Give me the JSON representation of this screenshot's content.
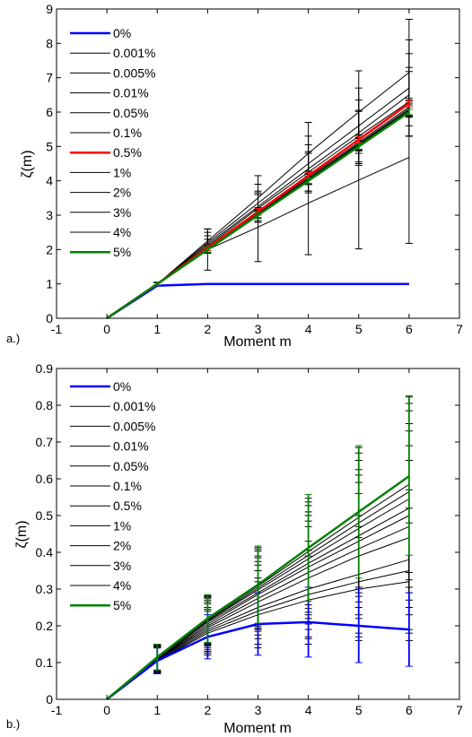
{
  "chart_data": [
    {
      "panel_label": "a.)",
      "type": "line",
      "xlabel": "Moment m",
      "ylabel": "ζ(m)",
      "xlim": [
        -1,
        7
      ],
      "ylim": [
        0,
        9
      ],
      "xticks": [
        -1,
        0,
        1,
        2,
        3,
        4,
        5,
        6,
        7
      ],
      "yticks": [
        0,
        1,
        2,
        3,
        4,
        5,
        6,
        7,
        8,
        9
      ],
      "x": [
        0,
        1,
        2,
        3,
        4,
        5,
        6
      ],
      "grid": false,
      "legend_position": "top-left",
      "series": [
        {
          "name": "0%",
          "color": "#0000ff",
          "width": 2.5,
          "values": [
            0,
            0.95,
            1.0,
            1.0,
            1.0,
            1.0,
            1.0
          ],
          "err": []
        },
        {
          "name": "0.001%",
          "color": "#000000",
          "width": 1,
          "values": [
            0,
            1.0,
            2.0,
            2.65,
            3.35,
            4.02,
            4.68
          ],
          "err": [
            0,
            0.05,
            0.6,
            1.0,
            1.5,
            2.0,
            2.5
          ]
        },
        {
          "name": "0.005%",
          "color": "#000000",
          "width": 1,
          "values": [
            0,
            1.0,
            2.25,
            3.5,
            4.8,
            6.0,
            7.15
          ],
          "err": [
            0,
            0.05,
            0.35,
            0.65,
            0.9,
            1.2,
            1.55
          ]
        },
        {
          "name": "0.01%",
          "color": "#000000",
          "width": 1,
          "values": [
            0,
            1.0,
            2.2,
            3.35,
            4.5,
            5.6,
            6.7
          ],
          "err": [
            0,
            0.05,
            0.3,
            0.55,
            0.8,
            1.1,
            1.4
          ]
        },
        {
          "name": "0.05%",
          "color": "#000000",
          "width": 1,
          "values": [
            0,
            1.0,
            2.15,
            3.25,
            4.35,
            5.4,
            6.5
          ],
          "err": [
            0,
            0.04,
            0.25,
            0.45,
            0.7,
            0.95,
            1.2
          ]
        },
        {
          "name": "0.1%",
          "color": "#000000",
          "width": 1,
          "values": [
            0,
            1.0,
            2.1,
            3.2,
            4.25,
            5.3,
            6.3
          ],
          "err": [
            0,
            0.04,
            0.2,
            0.4,
            0.55,
            0.75,
            1.0
          ]
        },
        {
          "name": "0.5%",
          "color": "#ff0000",
          "width": 2.5,
          "values": [
            0,
            1.0,
            2.05,
            3.1,
            4.15,
            5.2,
            6.25
          ],
          "err": [
            0,
            0.04,
            0.08,
            0.1,
            0.1,
            0.1,
            0.1
          ]
        },
        {
          "name": "1%",
          "color": "#000000",
          "width": 1,
          "values": [
            0,
            1.0,
            2.03,
            3.07,
            4.1,
            5.12,
            6.15
          ],
          "err": [
            0,
            0.04,
            0.12,
            0.15,
            0.18,
            0.22,
            0.25
          ]
        },
        {
          "name": "2%",
          "color": "#000000",
          "width": 1,
          "values": [
            0,
            1.0,
            2.02,
            3.05,
            4.06,
            5.08,
            6.1
          ],
          "err": [
            0,
            0.04,
            0.1,
            0.12,
            0.15,
            0.18,
            0.22
          ]
        },
        {
          "name": "3%",
          "color": "#000000",
          "width": 1,
          "values": [
            0,
            1.0,
            2.01,
            3.03,
            4.04,
            5.05,
            6.06
          ],
          "err": [
            0,
            0.04,
            0.1,
            0.12,
            0.15,
            0.18,
            0.2
          ]
        },
        {
          "name": "4%",
          "color": "#000000",
          "width": 1,
          "values": [
            0,
            1.0,
            2.0,
            3.02,
            4.02,
            5.03,
            6.03
          ],
          "err": [
            0,
            0.04,
            0.1,
            0.1,
            0.12,
            0.15,
            0.18
          ]
        },
        {
          "name": "5%",
          "color": "#008000",
          "width": 2.5,
          "values": [
            0,
            1.0,
            2.0,
            3.0,
            4.0,
            5.0,
            6.0
          ],
          "err": [
            0,
            0.04,
            0.08,
            0.08,
            0.08,
            0.08,
            0.08
          ]
        }
      ]
    },
    {
      "panel_label": "b.)",
      "type": "line",
      "xlabel": "Moment m",
      "ylabel": "ζ(m)",
      "xlim": [
        -1,
        7
      ],
      "ylim": [
        0,
        0.9
      ],
      "xticks": [
        -1,
        0,
        1,
        2,
        3,
        4,
        5,
        6,
        7
      ],
      "yticks": [
        0,
        0.1,
        0.2,
        0.3,
        0.4,
        0.5,
        0.6,
        0.7,
        0.8,
        0.9
      ],
      "x": [
        0,
        1,
        2,
        3,
        4,
        5,
        6
      ],
      "grid": false,
      "legend_position": "top-left",
      "series": [
        {
          "name": "0%",
          "color": "#0000ff",
          "width": 2.5,
          "values": [
            0,
            0.105,
            0.17,
            0.205,
            0.21,
            0.2,
            0.19
          ],
          "err": [
            0,
            0.035,
            0.06,
            0.085,
            0.095,
            0.1,
            0.1
          ]
        },
        {
          "name": "0.001%",
          "color": "#000000",
          "width": 1,
          "values": [
            0,
            0.105,
            0.18,
            0.23,
            0.27,
            0.3,
            0.32
          ],
          "err": [
            0,
            0.035,
            0.06,
            0.09,
            0.12,
            0.14,
            0.16
          ]
        },
        {
          "name": "0.005%",
          "color": "#000000",
          "width": 1,
          "values": [
            0,
            0.105,
            0.185,
            0.24,
            0.285,
            0.32,
            0.35
          ],
          "err": [
            0,
            0.035,
            0.06,
            0.09,
            0.12,
            0.15,
            0.17
          ]
        },
        {
          "name": "0.01%",
          "color": "#000000",
          "width": 1,
          "values": [
            0,
            0.107,
            0.19,
            0.25,
            0.3,
            0.34,
            0.38
          ],
          "err": [
            0,
            0.035,
            0.06,
            0.1,
            0.13,
            0.16,
            0.19
          ]
        },
        {
          "name": "0.05%",
          "color": "#000000",
          "width": 1,
          "values": [
            0,
            0.108,
            0.195,
            0.265,
            0.33,
            0.39,
            0.44
          ],
          "err": [
            0,
            0.035,
            0.065,
            0.1,
            0.14,
            0.17,
            0.21
          ]
        },
        {
          "name": "0.1%",
          "color": "#000000",
          "width": 1,
          "values": [
            0,
            0.109,
            0.2,
            0.275,
            0.345,
            0.41,
            0.47
          ],
          "err": [
            0,
            0.035,
            0.065,
            0.1,
            0.14,
            0.18,
            0.22
          ]
        },
        {
          "name": "0.5%",
          "color": "#000000",
          "width": 1,
          "values": [
            0,
            0.11,
            0.205,
            0.285,
            0.36,
            0.43,
            0.5
          ],
          "err": [
            0,
            0.035,
            0.065,
            0.1,
            0.14,
            0.18,
            0.23
          ]
        },
        {
          "name": "1%",
          "color": "#000000",
          "width": 1,
          "values": [
            0,
            0.111,
            0.21,
            0.29,
            0.37,
            0.445,
            0.52
          ],
          "err": [
            0,
            0.035,
            0.065,
            0.1,
            0.14,
            0.18,
            0.23
          ]
        },
        {
          "name": "2%",
          "color": "#000000",
          "width": 1,
          "values": [
            0,
            0.112,
            0.213,
            0.298,
            0.382,
            0.465,
            0.545
          ],
          "err": [
            0,
            0.035,
            0.065,
            0.105,
            0.145,
            0.185,
            0.24
          ]
        },
        {
          "name": "3%",
          "color": "#000000",
          "width": 1,
          "values": [
            0,
            0.113,
            0.215,
            0.303,
            0.392,
            0.48,
            0.565
          ],
          "err": [
            0,
            0.035,
            0.065,
            0.105,
            0.145,
            0.19,
            0.24
          ]
        },
        {
          "name": "4%",
          "color": "#000000",
          "width": 1,
          "values": [
            0,
            0.114,
            0.217,
            0.308,
            0.402,
            0.495,
            0.585
          ],
          "err": [
            0,
            0.035,
            0.065,
            0.105,
            0.145,
            0.19,
            0.24
          ]
        },
        {
          "name": "5%",
          "color": "#008000",
          "width": 2.5,
          "values": [
            0,
            0.115,
            0.22,
            0.312,
            0.412,
            0.51,
            0.607
          ],
          "err": [
            0,
            0.035,
            0.065,
            0.105,
            0.145,
            0.18,
            0.215
          ]
        }
      ]
    }
  ]
}
